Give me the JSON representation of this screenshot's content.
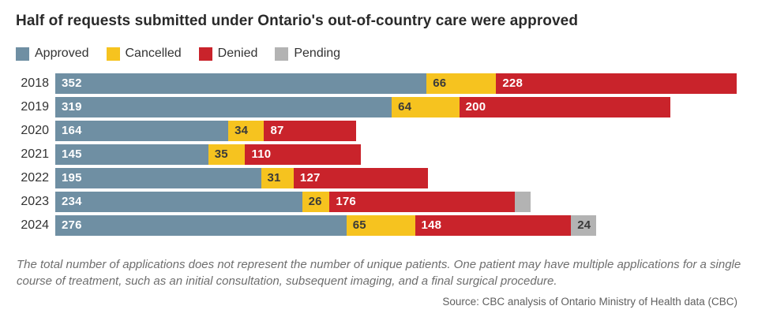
{
  "page": {
    "title": "Half of requests submitted under Ontario's out-of-country care were approved",
    "footnote": "The total number of applications does not represent the number of unique patients. One patient may have multiple applications for a single course of treatment, such as an initial consultation, subsequent imaging, and a final surgical procedure.",
    "source": "Source: CBC analysis of Ontario Ministry of Health data (CBC)"
  },
  "chart_data": {
    "type": "bar",
    "orientation": "horizontal",
    "stacked": true,
    "title": "Half of requests submitted under Ontario's out-of-country care were approved",
    "categories": [
      "2018",
      "2019",
      "2020",
      "2021",
      "2022",
      "2023",
      "2024"
    ],
    "series": [
      {
        "name": "Approved",
        "color": "#6f8fa3",
        "label_color": "#ffffff",
        "values": [
          352,
          319,
          164,
          145,
          195,
          234,
          276
        ],
        "labels": [
          "352",
          "319",
          "164",
          "145",
          "195",
          "234",
          "276"
        ]
      },
      {
        "name": "Cancelled",
        "color": "#f6c31f",
        "label_color": "#3a3a3a",
        "values": [
          66,
          64,
          34,
          35,
          31,
          26,
          65
        ],
        "labels": [
          "66",
          "64",
          "34",
          "35",
          "31",
          "26",
          "65"
        ]
      },
      {
        "name": "Denied",
        "color": "#c9232b",
        "label_color": "#ffffff",
        "values": [
          228,
          200,
          87,
          110,
          127,
          176,
          148
        ],
        "labels": [
          "228",
          "200",
          "87",
          "110",
          "127",
          "176",
          "148"
        ]
      },
      {
        "name": "Pending",
        "color": "#b3b3b3",
        "label_color": "#3a3a3a",
        "values": [
          0,
          0,
          0,
          0,
          0,
          15,
          24
        ],
        "labels": [
          "",
          "",
          "",
          "",
          "",
          "",
          "24"
        ]
      }
    ],
    "xmax": 646,
    "xlabel": "",
    "ylabel": "",
    "legend_position": "top",
    "grid": false,
    "value_labels": "inside-left"
  }
}
